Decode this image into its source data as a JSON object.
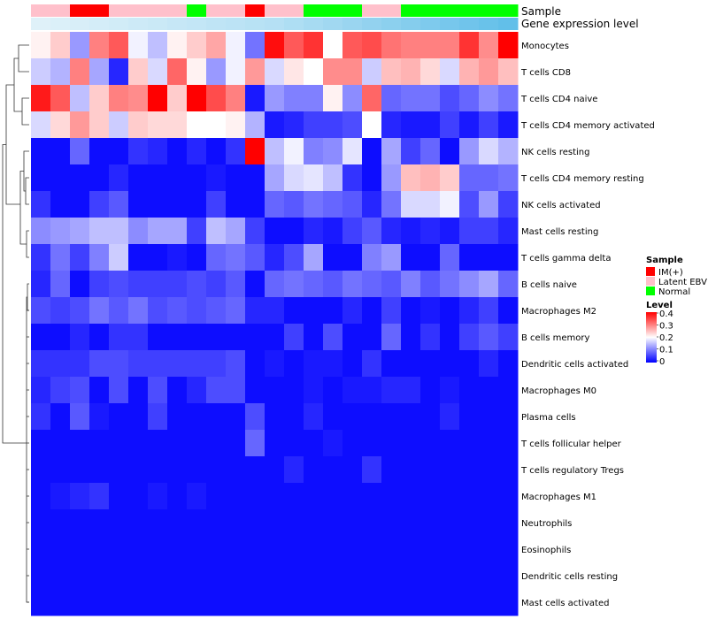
{
  "chart_data": {
    "type": "heatmap",
    "annotation_tracks": [
      "Sample",
      "Gene expression level"
    ],
    "samples": [
      "Latent EBV",
      "Latent EBV",
      "IM(+)",
      "IM(+)",
      "Latent EBV",
      "Latent EBV",
      "Latent EBV",
      "Latent EBV",
      "Normal",
      "Latent EBV",
      "Latent EBV",
      "IM(+)",
      "Latent EBV",
      "Latent EBV",
      "Normal",
      "Normal",
      "Normal",
      "Latent EBV",
      "Latent EBV",
      "Normal",
      "Normal",
      "Normal",
      "Normal",
      "Normal",
      "Normal"
    ],
    "sample_colors": {
      "IM(+)": "#ff0000",
      "Latent EBV": "#ffc0cb",
      "Normal": "#00ff00"
    },
    "gene_expression_level": [
      0.05,
      0.08,
      0.1,
      0.13,
      0.15,
      0.18,
      0.2,
      0.23,
      0.25,
      0.28,
      0.3,
      0.33,
      0.35,
      0.4,
      0.45,
      0.5,
      0.55,
      0.6,
      0.65,
      0.7,
      0.75,
      0.8,
      0.85,
      0.9,
      0.95
    ],
    "gene_expression_colors": {
      "low": "#e6f4fa",
      "high": "#5bbce8"
    },
    "rows": [
      "Monocytes",
      "T cells CD8",
      "T cells CD4 naive",
      "T cells CD4 memory activated",
      "NK cells resting",
      "T cells CD4 memory resting",
      "NK cells activated",
      "Mast cells resting",
      "T cells gamma delta",
      "B cells naive",
      "Macrophages M2",
      "B cells memory",
      "Dendritic cells activated",
      "Macrophages M0",
      "Plasma cells",
      "T cells follicular helper",
      "T cells regulatory  Tregs",
      "Macrophages M1",
      "Neutrophils",
      "Eosinophils",
      "Dendritic cells resting",
      "Mast cells activated"
    ],
    "values": [
      [
        0.21,
        0.24,
        0.12,
        0.3,
        0.33,
        0.19,
        0.15,
        0.21,
        0.24,
        0.27,
        0.19,
        0.09,
        0.39,
        0.33,
        0.36,
        0.2,
        0.33,
        0.34,
        0.31,
        0.3,
        0.3,
        0.3,
        0.36,
        0.29,
        0.4
      ],
      [
        0.16,
        0.14,
        0.3,
        0.13,
        0.03,
        0.24,
        0.17,
        0.32,
        0.21,
        0.12,
        0.19,
        0.28,
        0.17,
        0.22,
        0.2,
        0.29,
        0.29,
        0.16,
        0.25,
        0.26,
        0.23,
        0.17,
        0.26,
        0.28,
        0.25
      ],
      [
        0.38,
        0.33,
        0.15,
        0.24,
        0.3,
        0.29,
        0.4,
        0.24,
        0.4,
        0.34,
        0.3,
        0.02,
        0.12,
        0.1,
        0.1,
        0.21,
        0.11,
        0.32,
        0.08,
        0.09,
        0.09,
        0.06,
        0.08,
        0.11,
        0.09
      ],
      [
        0.17,
        0.23,
        0.28,
        0.24,
        0.16,
        0.24,
        0.23,
        0.23,
        0.2,
        0.2,
        0.21,
        0.14,
        0.02,
        0.03,
        0.05,
        0.05,
        0.06,
        0.2,
        0.03,
        0.02,
        0.02,
        0.05,
        0.02,
        0.05,
        0.02
      ],
      [
        0.01,
        0.01,
        0.08,
        0.01,
        0.01,
        0.04,
        0.03,
        0.01,
        0.03,
        0.01,
        0.04,
        0.4,
        0.15,
        0.19,
        0.1,
        0.11,
        0.18,
        0.01,
        0.13,
        0.05,
        0.08,
        0.01,
        0.12,
        0.17,
        0.14
      ],
      [
        0.01,
        0.01,
        0.01,
        0.01,
        0.03,
        0.01,
        0.01,
        0.01,
        0.01,
        0.02,
        0.01,
        0.01,
        0.13,
        0.17,
        0.18,
        0.15,
        0.04,
        0.01,
        0.12,
        0.25,
        0.26,
        0.24,
        0.08,
        0.08,
        0.09
      ],
      [
        0.04,
        0.01,
        0.01,
        0.05,
        0.07,
        0.01,
        0.01,
        0.01,
        0.01,
        0.05,
        0.01,
        0.01,
        0.08,
        0.07,
        0.09,
        0.08,
        0.07,
        0.03,
        0.09,
        0.17,
        0.17,
        0.19,
        0.06,
        0.12,
        0.05
      ],
      [
        0.11,
        0.12,
        0.13,
        0.15,
        0.15,
        0.11,
        0.13,
        0.13,
        0.05,
        0.15,
        0.13,
        0.05,
        0.01,
        0.01,
        0.03,
        0.02,
        0.05,
        0.07,
        0.03,
        0.02,
        0.03,
        0.02,
        0.05,
        0.05,
        0.03
      ],
      [
        0.04,
        0.09,
        0.05,
        0.1,
        0.16,
        0.01,
        0.01,
        0.02,
        0.01,
        0.08,
        0.09,
        0.07,
        0.03,
        0.06,
        0.13,
        0.01,
        0.01,
        0.1,
        0.12,
        0.01,
        0.01,
        0.08,
        0.01,
        0.01,
        0.01
      ],
      [
        0.03,
        0.08,
        0.01,
        0.05,
        0.06,
        0.05,
        0.05,
        0.05,
        0.06,
        0.05,
        0.07,
        0.01,
        0.08,
        0.09,
        0.08,
        0.07,
        0.09,
        0.08,
        0.07,
        0.1,
        0.07,
        0.09,
        0.11,
        0.13,
        0.08
      ],
      [
        0.06,
        0.05,
        0.06,
        0.09,
        0.07,
        0.09,
        0.06,
        0.07,
        0.06,
        0.07,
        0.08,
        0.03,
        0.03,
        0.01,
        0.01,
        0.01,
        0.03,
        0.01,
        0.05,
        0.01,
        0.02,
        0.01,
        0.03,
        0.05,
        0.01
      ],
      [
        0.01,
        0.01,
        0.03,
        0.01,
        0.04,
        0.04,
        0.01,
        0.01,
        0.01,
        0.01,
        0.01,
        0.01,
        0.01,
        0.05,
        0.01,
        0.06,
        0.01,
        0.01,
        0.08,
        0.01,
        0.04,
        0.01,
        0.05,
        0.07,
        0.05
      ],
      [
        0.04,
        0.04,
        0.04,
        0.06,
        0.06,
        0.05,
        0.05,
        0.05,
        0.05,
        0.05,
        0.06,
        0.01,
        0.02,
        0.01,
        0.02,
        0.02,
        0.01,
        0.04,
        0.01,
        0.01,
        0.01,
        0.01,
        0.01,
        0.03,
        0.01
      ],
      [
        0.03,
        0.05,
        0.06,
        0.01,
        0.06,
        0.01,
        0.06,
        0.01,
        0.03,
        0.06,
        0.06,
        0.01,
        0.01,
        0.01,
        0.02,
        0.01,
        0.02,
        0.02,
        0.03,
        0.03,
        0.01,
        0.02,
        0.01,
        0.01,
        0.01
      ],
      [
        0.04,
        0.01,
        0.07,
        0.02,
        0.01,
        0.01,
        0.05,
        0.01,
        0.01,
        0.01,
        0.01,
        0.06,
        0.01,
        0.01,
        0.03,
        0.01,
        0.01,
        0.01,
        0.01,
        0.01,
        0.01,
        0.03,
        0.01,
        0.01,
        0.01
      ],
      [
        0.01,
        0.01,
        0.01,
        0.01,
        0.01,
        0.01,
        0.01,
        0.01,
        0.01,
        0.01,
        0.01,
        0.08,
        0.01,
        0.01,
        0.01,
        0.02,
        0.01,
        0.01,
        0.01,
        0.01,
        0.01,
        0.01,
        0.01,
        0.01,
        0.01
      ],
      [
        0.01,
        0.01,
        0.01,
        0.01,
        0.01,
        0.01,
        0.01,
        0.01,
        0.01,
        0.01,
        0.01,
        0.01,
        0.01,
        0.03,
        0.01,
        0.01,
        0.01,
        0.04,
        0.01,
        0.01,
        0.01,
        0.01,
        0.01,
        0.01,
        0.01
      ],
      [
        0.01,
        0.02,
        0.03,
        0.04,
        0.01,
        0.01,
        0.02,
        0.01,
        0.02,
        0.01,
        0.01,
        0.01,
        0.01,
        0.01,
        0.01,
        0.01,
        0.01,
        0.01,
        0.01,
        0.01,
        0.01,
        0.01,
        0.01,
        0.01,
        0.01
      ],
      [
        0.01,
        0.01,
        0.01,
        0.01,
        0.01,
        0.01,
        0.01,
        0.01,
        0.01,
        0.01,
        0.01,
        0.01,
        0.01,
        0.01,
        0.01,
        0.01,
        0.01,
        0.01,
        0.01,
        0.01,
        0.01,
        0.01,
        0.01,
        0.01,
        0.01
      ],
      [
        0.01,
        0.01,
        0.01,
        0.01,
        0.01,
        0.01,
        0.01,
        0.01,
        0.01,
        0.01,
        0.01,
        0.01,
        0.01,
        0.01,
        0.01,
        0.01,
        0.01,
        0.01,
        0.01,
        0.01,
        0.01,
        0.01,
        0.01,
        0.01,
        0.01
      ],
      [
        0.01,
        0.01,
        0.01,
        0.01,
        0.01,
        0.01,
        0.01,
        0.01,
        0.01,
        0.01,
        0.01,
        0.01,
        0.01,
        0.01,
        0.01,
        0.01,
        0.01,
        0.01,
        0.01,
        0.01,
        0.01,
        0.01,
        0.01,
        0.01,
        0.01
      ],
      [
        0.01,
        0.01,
        0.01,
        0.01,
        0.01,
        0.01,
        0.01,
        0.01,
        0.01,
        0.01,
        0.01,
        0.01,
        0.01,
        0.01,
        0.01,
        0.01,
        0.01,
        0.01,
        0.01,
        0.01,
        0.01,
        0.01,
        0.01,
        0.01,
        0.01
      ]
    ],
    "color_scale": {
      "min": 0,
      "mid": 0.2,
      "max": 0.4,
      "low": "#0000ff",
      "mid_color": "#ffffff",
      "high": "#ff0000"
    },
    "legend": {
      "sample_title": "Sample",
      "sample_entries": [
        "IM(+)",
        "Latent EBV",
        "Normal"
      ],
      "level_title": "Level",
      "level_ticks": [
        "0.4",
        "0.3",
        "0.2",
        "0.1",
        "0"
      ],
      "placement": "right"
    },
    "row_dendrogram": true,
    "col_dendrogram": false,
    "grid": false
  }
}
